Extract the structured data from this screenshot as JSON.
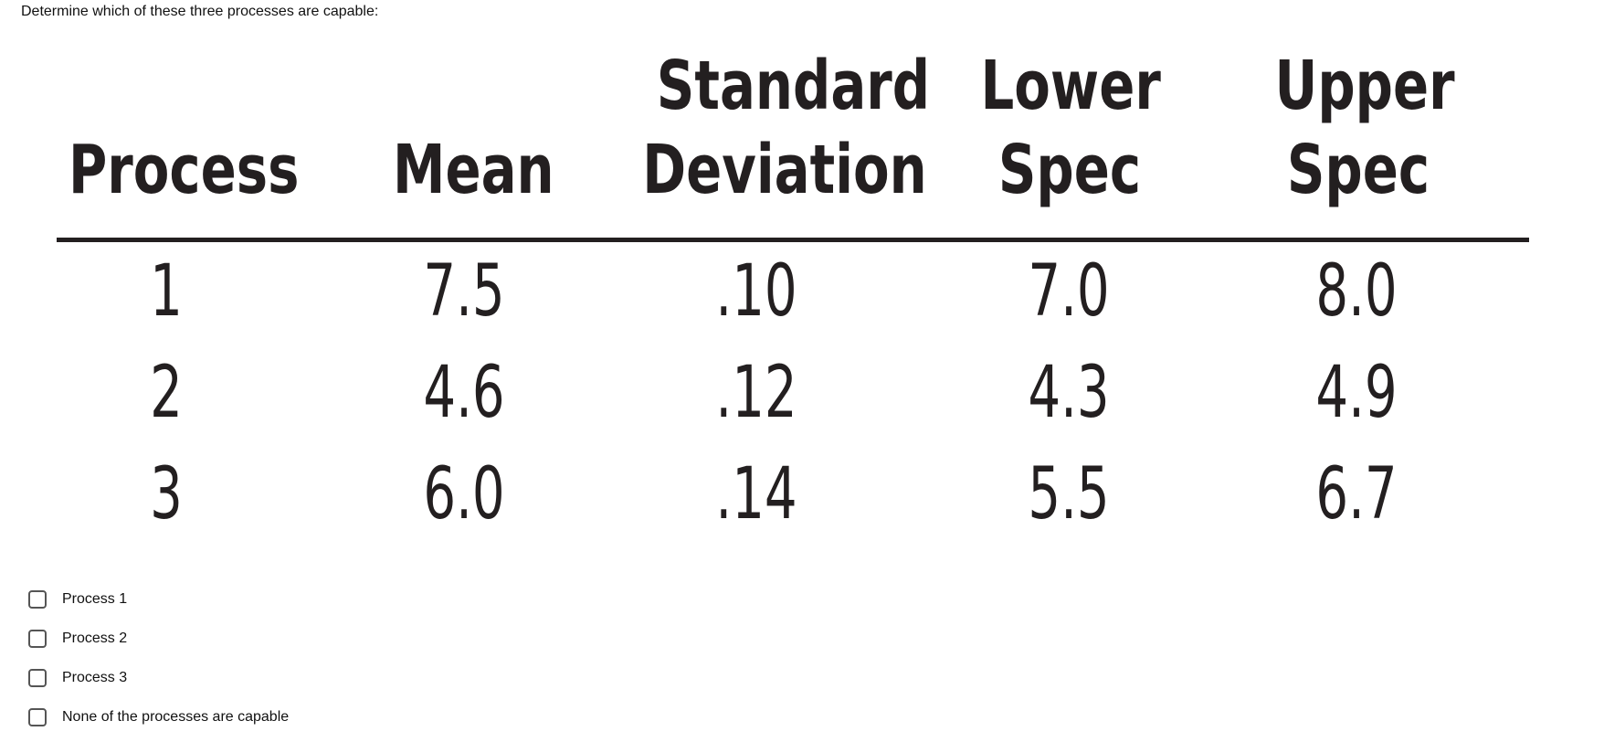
{
  "question": "Determine which of these three processes are capable:",
  "table": {
    "headers": [
      {
        "line1": "",
        "line2": "Process"
      },
      {
        "line1": "",
        "line2": "Mean"
      },
      {
        "line1": "Standard",
        "line2": "Deviation"
      },
      {
        "line1": "Lower",
        "line2": "Spec"
      },
      {
        "line1": "Upper",
        "line2": "Spec"
      }
    ],
    "rows": [
      [
        "1",
        "7.5",
        ".10",
        "7.0",
        "8.0"
      ],
      [
        "2",
        "4.6",
        ".12",
        "4.3",
        "4.9"
      ],
      [
        "3",
        "6.0",
        ".14",
        "5.5",
        "6.7"
      ]
    ]
  },
  "options": [
    {
      "label": "Process 1"
    },
    {
      "label": "Process 2"
    },
    {
      "label": "Process 3"
    },
    {
      "label": "None of the processes are capable"
    }
  ]
}
